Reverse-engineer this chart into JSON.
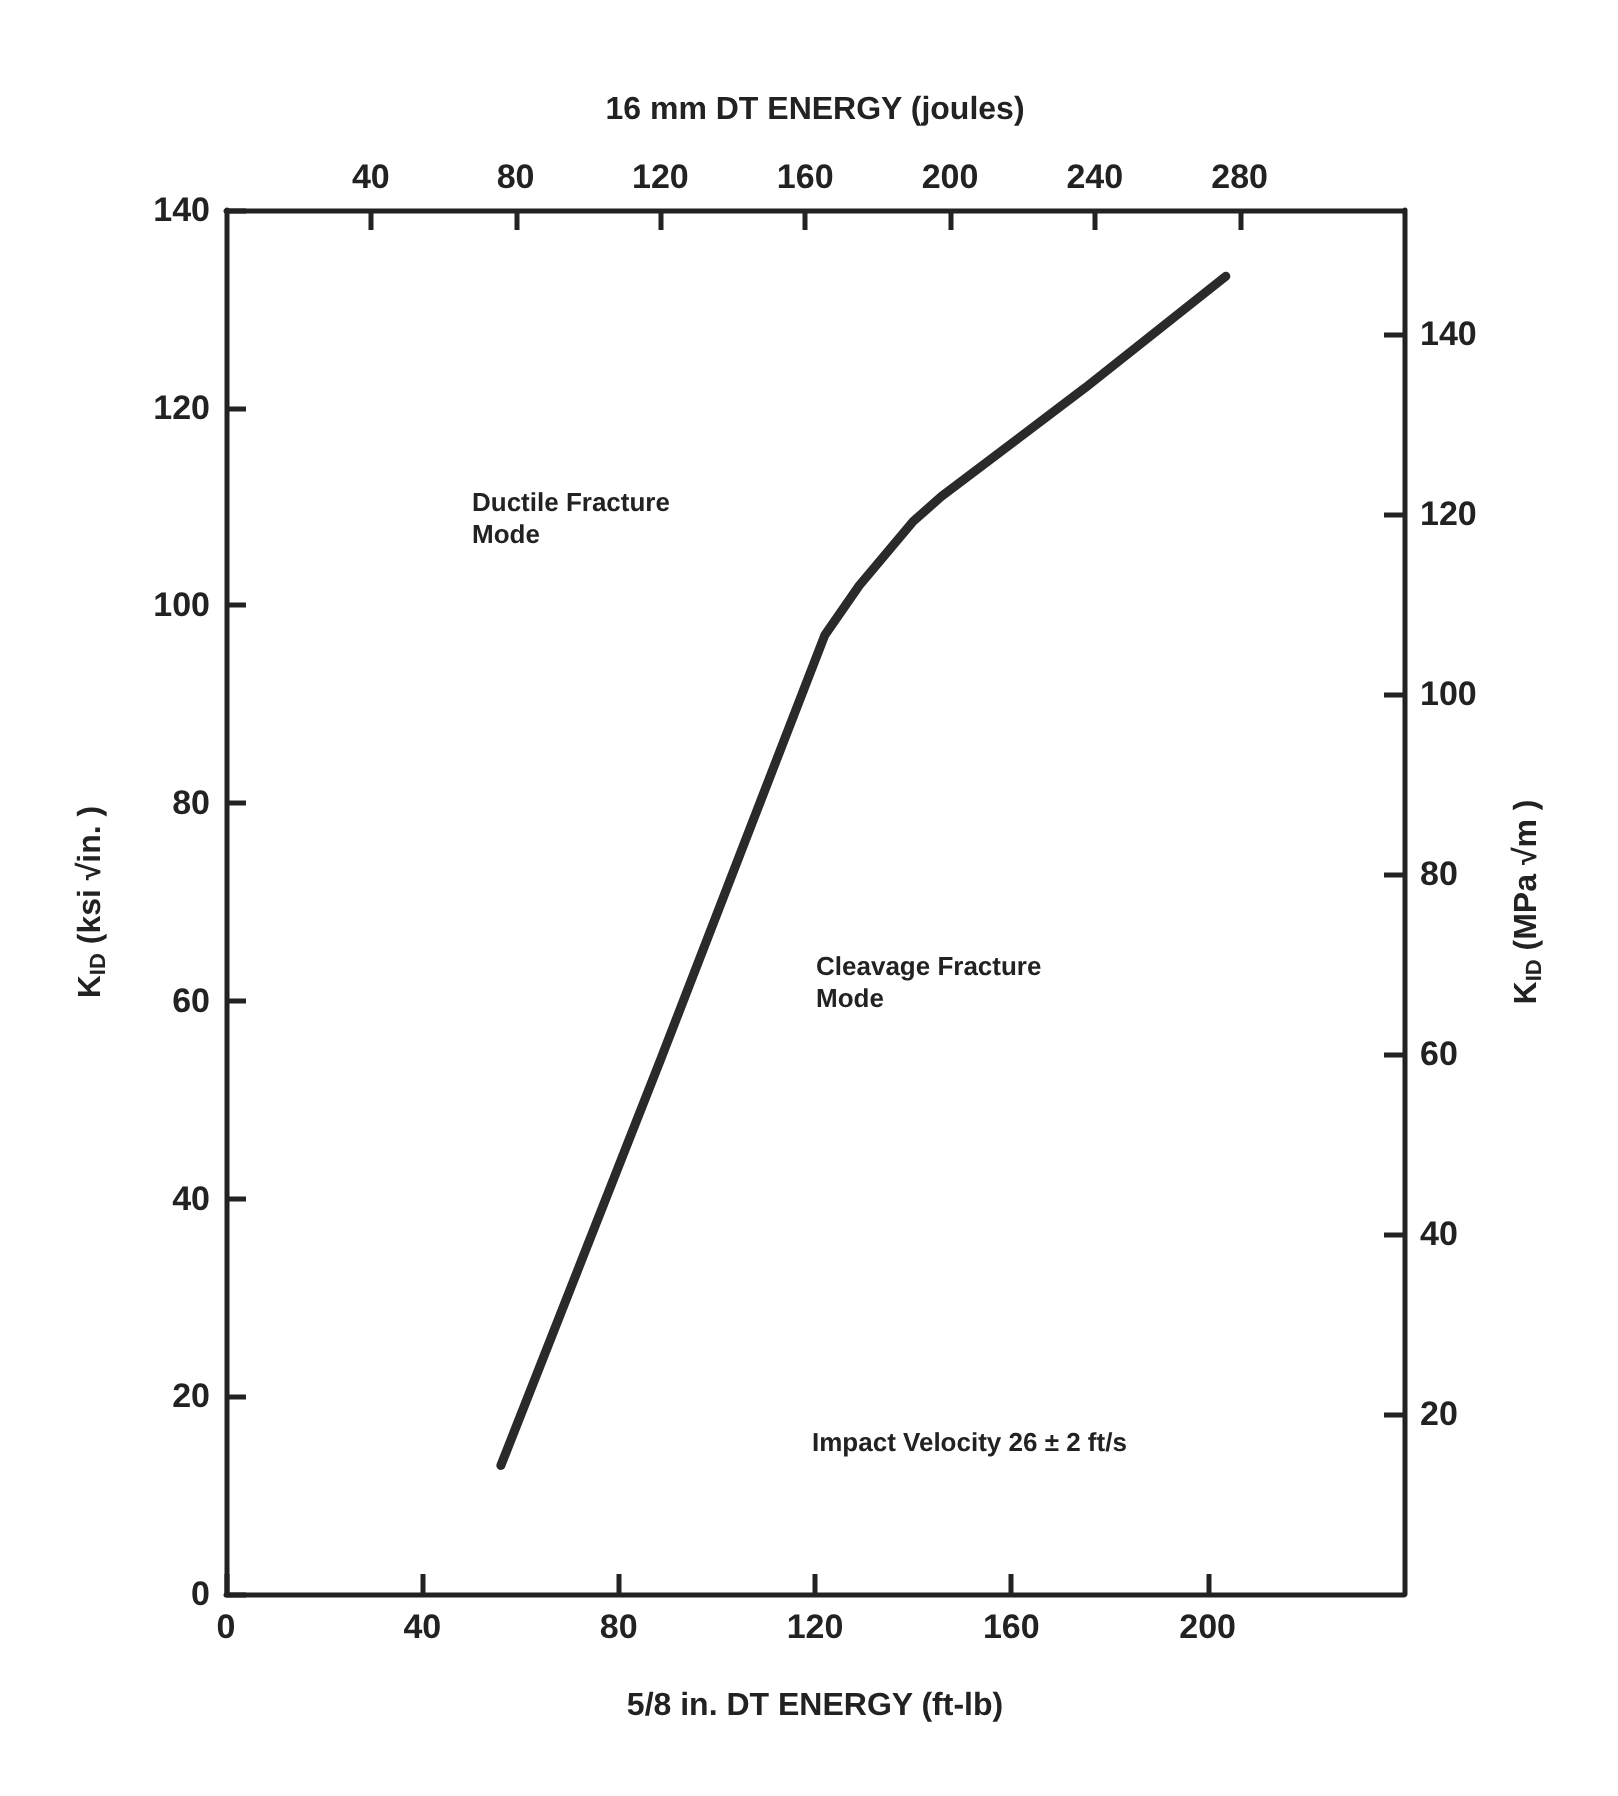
{
  "chart_data": {
    "type": "line",
    "xlabel": "5/8 in. DT ENERGY (ft-lb)",
    "x2label": "16 mm DT ENERGY (joules)",
    "ylabel": "K$_{ID}$ (ksi √in. )",
    "y2label": "K$_{ID}$ (MPa √m )",
    "xlim": [
      0,
      240
    ],
    "xticks": [
      0,
      40,
      80,
      120,
      160,
      200
    ],
    "x2lim": [
      0,
      325.4
    ],
    "x2ticks": [
      40,
      80,
      120,
      160,
      200,
      240,
      280
    ],
    "ylim": [
      0,
      140
    ],
    "yticks": [
      0,
      20,
      40,
      60,
      80,
      100,
      120,
      140
    ],
    "y2lim": [
      0,
      153.8
    ],
    "y2ticks": [
      20,
      40,
      60,
      80,
      100,
      120,
      140
    ],
    "series": [
      {
        "color": "#2a2a2a",
        "x": [
          56,
          88.5,
          122,
          129,
          140,
          145.7,
          175,
          203.7
        ],
        "values": [
          13,
          54,
          97,
          102,
          108.5,
          111,
          122,
          133.3
        ]
      }
    ],
    "annotations": [
      "Ductile Fracture Mode",
      "Cleavage Fracture Mode",
      "Impact Velocity 26 ± 2 ft/s"
    ],
    "marker": "none",
    "line_style": "solid",
    "grid": false
  }
}
